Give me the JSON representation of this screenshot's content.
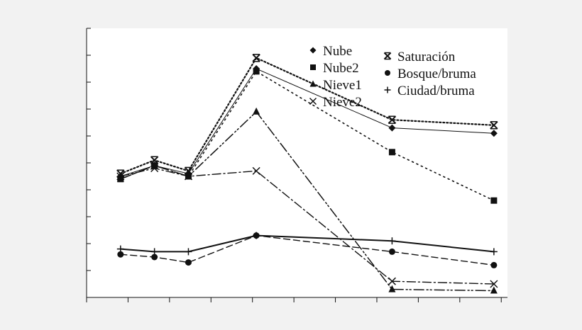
{
  "chart_data": {
    "type": "line",
    "title": "",
    "xlabel": "",
    "ylabel": "",
    "x": [
      1,
      2,
      3,
      5,
      9,
      12
    ],
    "xlim": [
      0,
      12.4
    ],
    "ylim": [
      0,
      1
    ],
    "grid": false,
    "legend_position": "top-right",
    "series": [
      {
        "name": "Nube",
        "values": [
          0.45,
          0.49,
          0.46,
          0.85,
          0.63,
          0.61
        ],
        "marker": "diamond",
        "dash": "solid-thin",
        "color": "#111111"
      },
      {
        "name": "Nube2",
        "values": [
          0.44,
          0.49,
          0.45,
          0.84,
          0.54,
          0.36
        ],
        "marker": "square",
        "dash": "dotted",
        "color": "#111111"
      },
      {
        "name": "Nieve1",
        "values": [
          0.44,
          0.49,
          0.45,
          0.69,
          0.03,
          0.025
        ],
        "marker": "triangle",
        "dash": "dashdotdot",
        "color": "#111111"
      },
      {
        "name": "Nieve2",
        "values": [
          0.45,
          0.48,
          0.45,
          0.47,
          0.06,
          0.05
        ],
        "marker": "x",
        "dash": "dashdot",
        "color": "#111111"
      },
      {
        "name": "Saturación",
        "values": [
          0.46,
          0.51,
          0.47,
          0.89,
          0.66,
          0.64
        ],
        "marker": "asterisk",
        "dash": "dotted-bold",
        "color": "#111111"
      },
      {
        "name": "Bosque/bruma",
        "values": [
          0.16,
          0.15,
          0.13,
          0.23,
          0.17,
          0.12
        ],
        "marker": "circle",
        "dash": "dashed",
        "color": "#111111"
      },
      {
        "name": "Ciudad/bruma",
        "values": [
          0.18,
          0.17,
          0.17,
          0.23,
          0.21,
          0.17
        ],
        "marker": "plus",
        "dash": "solid-bold",
        "color": "#111111"
      }
    ]
  }
}
